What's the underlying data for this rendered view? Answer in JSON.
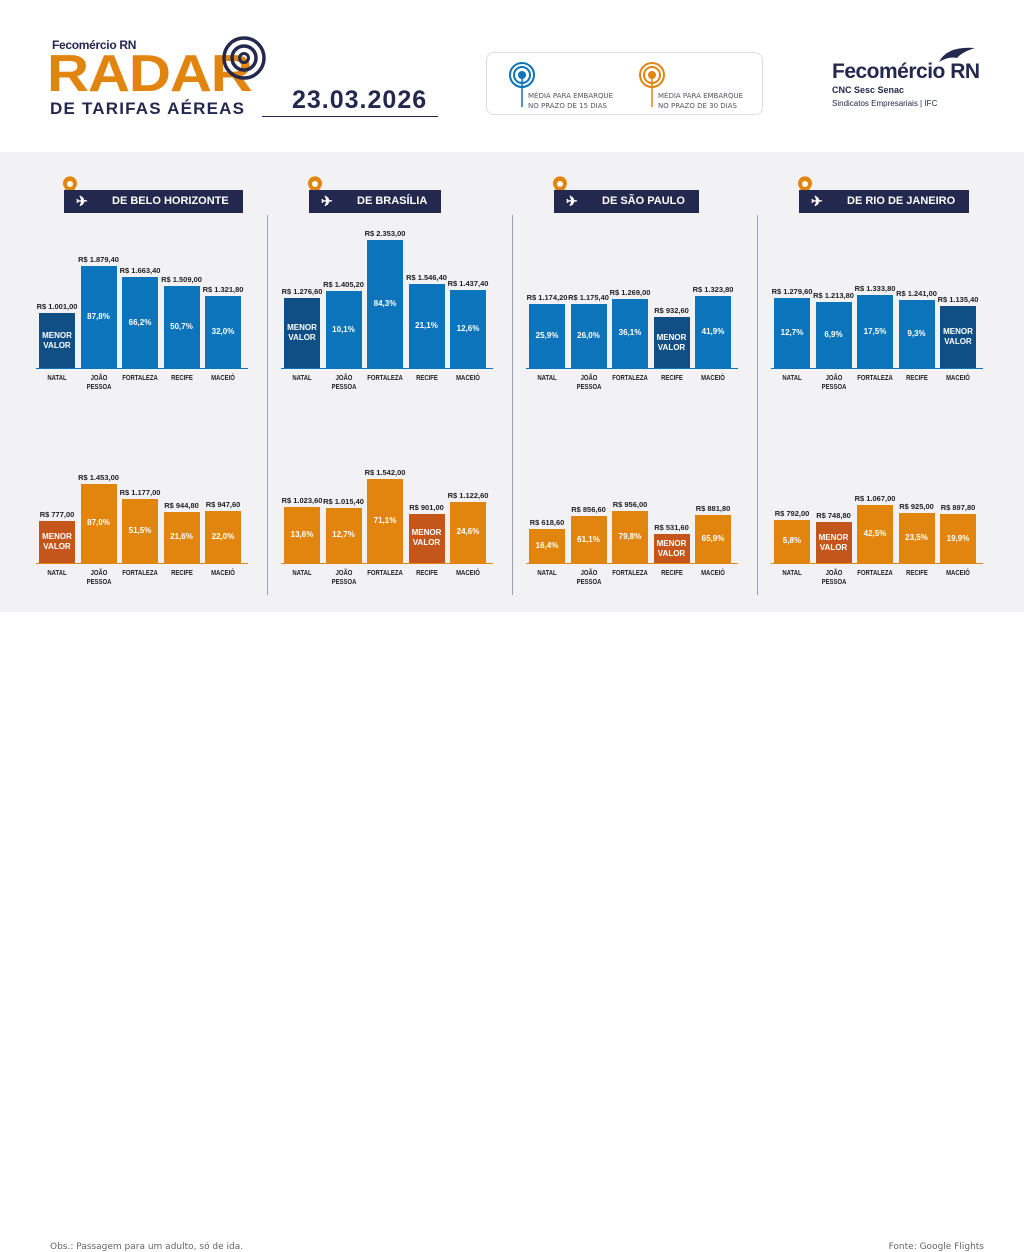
{
  "header": {
    "brand_small": "Fecomércio RN",
    "title": "RADAR",
    "subtitle": "DE TARIFAS AÉREAS",
    "date": "23.03.2026",
    "logo_name": "Fecomércio RN",
    "logo_sub": "CNC Sesc Senac",
    "logo_tag": "Sindicatos Empresariais  |  IFC"
  },
  "legend": [
    {
      "label": "MÉDIA PARA EMBARQUE\nNO PRAZO DE 15 DIAS",
      "color": "#0b74bb"
    },
    {
      "label": "MÉDIA PARA EMBARQUE\nNO PRAZO DE 30 DIAS",
      "color": "#e2850f"
    }
  ],
  "colors": {
    "blue": "#0b74bb",
    "blue_lowest": "#0f4f85",
    "orange": "#e2850f",
    "orange_lowest": "#c4561b",
    "navy": "#23284f"
  },
  "lowest_label": "MENOR\nVALOR",
  "chart_data": {
    "type": "bar",
    "categories": [
      "NATAL",
      "JOÃO\nPESSOA",
      "FORTALEZA",
      "RECIFE",
      "MACEIÓ"
    ],
    "panels": [
      {
        "title": "DE BELO HORIZONTE",
        "series": [
          {
            "name": "MÉDIA PARA EMBARQUE NO PRAZO DE 15 DIAS",
            "values": [
              1001.0,
              1879.4,
              1663.4,
              1509.0,
              1321.8
            ],
            "labels": [
              "R$ 1.001,00",
              "R$ 1.879,40",
              "R$ 1.663,40",
              "R$ 1.509,00",
              "R$ 1.321,80"
            ],
            "pct": [
              "",
              "87,8%",
              "66,2%",
              "50,7%",
              "32,0%"
            ],
            "lowest": 0
          },
          {
            "name": "MÉDIA PARA EMBARQUE NO PRAZO DE 30 DIAS",
            "values": [
              777.0,
              1453.0,
              1177.0,
              944.8,
              947.6
            ],
            "labels": [
              "R$ 777,00",
              "R$ 1.453,00",
              "R$ 1.177,00",
              "R$ 944,80",
              "R$ 947,60"
            ],
            "pct": [
              "",
              "87,0%",
              "51,5%",
              "21,6%",
              "22,0%"
            ],
            "lowest": 0
          }
        ]
      },
      {
        "title": "DE BRASÍLIA",
        "series": [
          {
            "name": "MÉDIA PARA EMBARQUE NO PRAZO DE 15 DIAS",
            "values": [
              1276.6,
              1405.2,
              2353.0,
              1546.4,
              1437.4
            ],
            "labels": [
              "R$ 1.276,60",
              "R$ 1.405,20",
              "R$ 2.353,00",
              "R$ 1.546,40",
              "R$ 1.437,40"
            ],
            "pct": [
              "",
              "10,1%",
              "84,3%",
              "21,1%",
              "12,6%"
            ],
            "lowest": 0
          },
          {
            "name": "MÉDIA PARA EMBARQUE NO PRAZO DE 30 DIAS",
            "values": [
              1023.6,
              1015.4,
              1542.0,
              901.0,
              1122.6
            ],
            "labels": [
              "R$ 1.023,60",
              "R$ 1.015,40",
              "R$ 1.542,00",
              "R$ 901,00",
              "R$ 1.122,60"
            ],
            "pct": [
              "13,6%",
              "12,7%",
              "71,1%",
              "",
              "24,6%"
            ],
            "lowest": 3
          }
        ]
      },
      {
        "title": "DE SÃO PAULO",
        "series": [
          {
            "name": "MÉDIA PARA EMBARQUE NO PRAZO DE 15 DIAS",
            "values": [
              1174.2,
              1175.4,
              1269.0,
              932.6,
              1323.8
            ],
            "labels": [
              "R$ 1.174,20",
              "R$ 1.175,40",
              "R$ 1.269,00",
              "R$ 932,60",
              "R$ 1.323,80"
            ],
            "pct": [
              "25,9%",
              "26,0%",
              "36,1%",
              "",
              "41,9%"
            ],
            "lowest": 3
          },
          {
            "name": "MÉDIA PARA EMBARQUE NO PRAZO DE 30 DIAS",
            "values": [
              618.6,
              856.6,
              956.0,
              531.6,
              881.8
            ],
            "labels": [
              "R$ 618,60",
              "R$ 856,60",
              "R$ 956,00",
              "R$ 531,60",
              "R$ 881,80"
            ],
            "pct": [
              "16,4%",
              "61,1%",
              "79,8%",
              "",
              "65,9%"
            ],
            "lowest": 3
          }
        ]
      },
      {
        "title": "DE RIO DE JANEIRO",
        "series": [
          {
            "name": "MÉDIA PARA EMBARQUE NO PRAZO DE 15 DIAS",
            "values": [
              1279.6,
              1213.8,
              1333.8,
              1241.0,
              1135.4
            ],
            "labels": [
              "R$ 1.279,60",
              "R$ 1.213,80",
              "R$ 1.333,80",
              "R$ 1.241,00",
              "R$ 1.135,40"
            ],
            "pct": [
              "12,7%",
              "6,9%",
              "17,5%",
              "9,3%",
              ""
            ],
            "lowest": 4
          },
          {
            "name": "MÉDIA PARA EMBARQUE NO PRAZO DE 30 DIAS",
            "values": [
              792.0,
              748.8,
              1067.0,
              925.0,
              897.8
            ],
            "labels": [
              "R$ 792,00",
              "R$ 748,80",
              "R$ 1.067,00",
              "R$ 925,00",
              "R$ 897,80"
            ],
            "pct": [
              "5,8%",
              "",
              "42,5%",
              "23,5%",
              "19,9%"
            ],
            "lowest": 1
          }
        ]
      }
    ]
  },
  "footer": {
    "note": "Obs.: Passagem para um adulto, só de ida.",
    "source": "Fonte: Google Flights"
  }
}
